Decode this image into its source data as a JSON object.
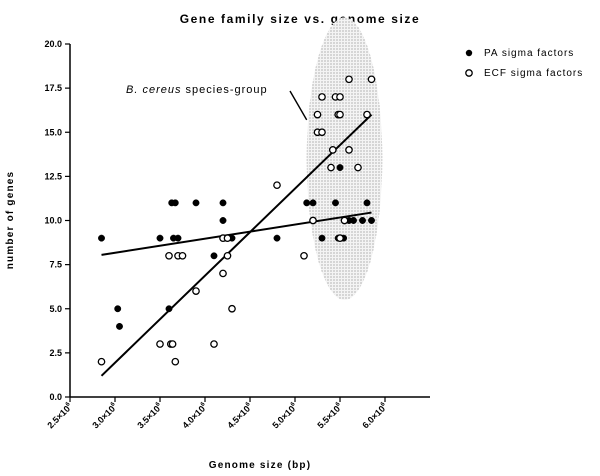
{
  "chart_data": {
    "type": "scatter",
    "title": "Gene family size vs. genome size",
    "xlabel": "Genome size (bp)",
    "ylabel": "number of genes",
    "xlim": [
      2500000,
      6500000
    ],
    "ylim": [
      0,
      20
    ],
    "x_ticks": [
      2500000,
      3000000,
      3500000,
      4000000,
      4500000,
      5000000,
      5500000,
      6000000
    ],
    "x_tick_labels": [
      {
        "mant": "2.5×10",
        "exp": "6"
      },
      {
        "mant": "3.0×10",
        "exp": "6"
      },
      {
        "mant": "3.5×10",
        "exp": "6"
      },
      {
        "mant": "4.0×10",
        "exp": "6"
      },
      {
        "mant": "4.5×10",
        "exp": "6"
      },
      {
        "mant": "5.0×10",
        "exp": "6"
      },
      {
        "mant": "5.5×10",
        "exp": "6"
      },
      {
        "mant": "6.0×10",
        "exp": "6"
      }
    ],
    "y_ticks": [
      0,
      2.5,
      5,
      7.5,
      10,
      12.5,
      15,
      17.5,
      20
    ],
    "y_tick_labels": [
      "0.0",
      "2.5",
      "5.0",
      "7.5",
      "10.0",
      "12.5",
      "15.0",
      "17.5",
      "20.0"
    ],
    "grid": false,
    "legend_position": "top-right",
    "series": [
      {
        "name": "PA sigma factors",
        "marker": "filled-circle",
        "color": "#000000",
        "points": [
          [
            2850000,
            9
          ],
          [
            3030000,
            5
          ],
          [
            3050000,
            4
          ],
          [
            3500000,
            9
          ],
          [
            3600000,
            5
          ],
          [
            3630000,
            11
          ],
          [
            3650000,
            9
          ],
          [
            3670000,
            11
          ],
          [
            3700000,
            9
          ],
          [
            3900000,
            11
          ],
          [
            4100000,
            8
          ],
          [
            4200000,
            10
          ],
          [
            4200000,
            11
          ],
          [
            4220000,
            9
          ],
          [
            4250000,
            9
          ],
          [
            4300000,
            9
          ],
          [
            4800000,
            9
          ],
          [
            5130000,
            11
          ],
          [
            5200000,
            11
          ],
          [
            5300000,
            9
          ],
          [
            5450000,
            11
          ],
          [
            5480000,
            9
          ],
          [
            5500000,
            9
          ],
          [
            5500000,
            13
          ],
          [
            5540000,
            9
          ],
          [
            5600000,
            10
          ],
          [
            5650000,
            10
          ],
          [
            5750000,
            10
          ],
          [
            5800000,
            11
          ],
          [
            5850000,
            10
          ]
        ],
        "fit_line": [
          [
            2850000,
            8.05
          ],
          [
            5850000,
            10.45
          ]
        ]
      },
      {
        "name": "ECF sigma factors",
        "marker": "open-circle",
        "color": "#000000",
        "points": [
          [
            2850000,
            2
          ],
          [
            3500000,
            3
          ],
          [
            3600000,
            8
          ],
          [
            3620000,
            3
          ],
          [
            3640000,
            3
          ],
          [
            3670000,
            2
          ],
          [
            3700000,
            8
          ],
          [
            3750000,
            8
          ],
          [
            3900000,
            6
          ],
          [
            4100000,
            3
          ],
          [
            4200000,
            7
          ],
          [
            4200000,
            9
          ],
          [
            4250000,
            9
          ],
          [
            4250000,
            8
          ],
          [
            4300000,
            5
          ],
          [
            4800000,
            12
          ],
          [
            5100000,
            8
          ],
          [
            5200000,
            10
          ],
          [
            5250000,
            16
          ],
          [
            5250000,
            15
          ],
          [
            5300000,
            15
          ],
          [
            5300000,
            17
          ],
          [
            5400000,
            13
          ],
          [
            5420000,
            14
          ],
          [
            5450000,
            17
          ],
          [
            5480000,
            16
          ],
          [
            5500000,
            16
          ],
          [
            5500000,
            17
          ],
          [
            5600000,
            14
          ],
          [
            5600000,
            18
          ],
          [
            5700000,
            13
          ],
          [
            5800000,
            16
          ],
          [
            5850000,
            18
          ],
          [
            5500000,
            9
          ],
          [
            5550000,
            10
          ]
        ],
        "fit_line": [
          [
            2850000,
            1.2
          ],
          [
            5850000,
            16.0
          ]
        ]
      }
    ],
    "annotation": {
      "text_italic": "B. cereus",
      "text_rest": " species-group",
      "highlight_region": {
        "x_center": 5550000,
        "y_center": 13.5,
        "x_radius": 420000,
        "y_radius": 8.0
      },
      "arrow_target": [
        5130000,
        15.7
      ]
    }
  }
}
